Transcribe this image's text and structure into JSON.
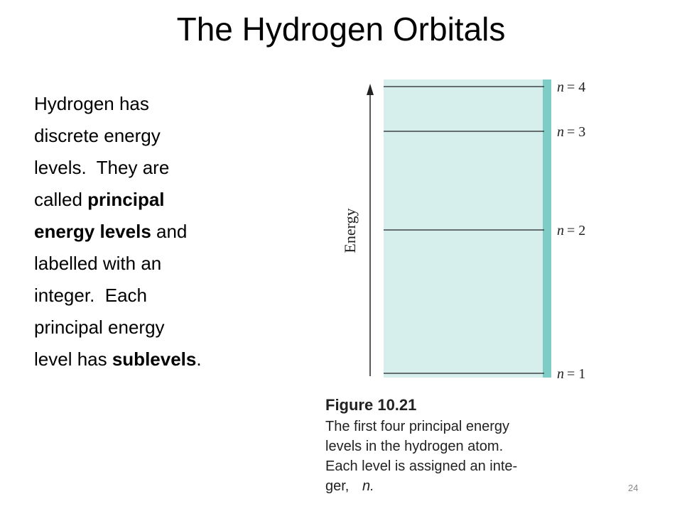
{
  "title": "The Hydrogen Orbitals",
  "body": {
    "lines": [
      [
        {
          "text": "Hydrogen has"
        }
      ],
      [
        {
          "text": "discrete energy"
        }
      ],
      [
        {
          "text": "levels.  They are"
        }
      ],
      [
        {
          "text": "called "
        },
        {
          "text": "principal",
          "bold": true
        }
      ],
      [
        {
          "text": "energy levels",
          "bold": true
        },
        {
          "text": " and"
        }
      ],
      [
        {
          "text": "labelled with an"
        }
      ],
      [
        {
          "text": "integer.  Each"
        }
      ],
      [
        {
          "text": "principal energy"
        }
      ],
      [
        {
          "text": "level has "
        },
        {
          "text": "sublevels",
          "bold": true
        },
        {
          "text": "."
        }
      ]
    ]
  },
  "figure": {
    "axis_label": "Energy",
    "levels": [
      {
        "var": "n",
        "eq": "= 4"
      },
      {
        "var": "n",
        "eq": "= 3"
      },
      {
        "var": "n",
        "eq": "= 2"
      },
      {
        "var": "n",
        "eq": "= 1"
      }
    ],
    "caption": {
      "label": "Figure 10.21",
      "lines": [
        "The first four principal energy",
        "levels in the hydrogen atom.",
        "Each level is assigned an inte-"
      ],
      "last_line": [
        "ger,",
        "n."
      ]
    }
  },
  "page_number": "24"
}
